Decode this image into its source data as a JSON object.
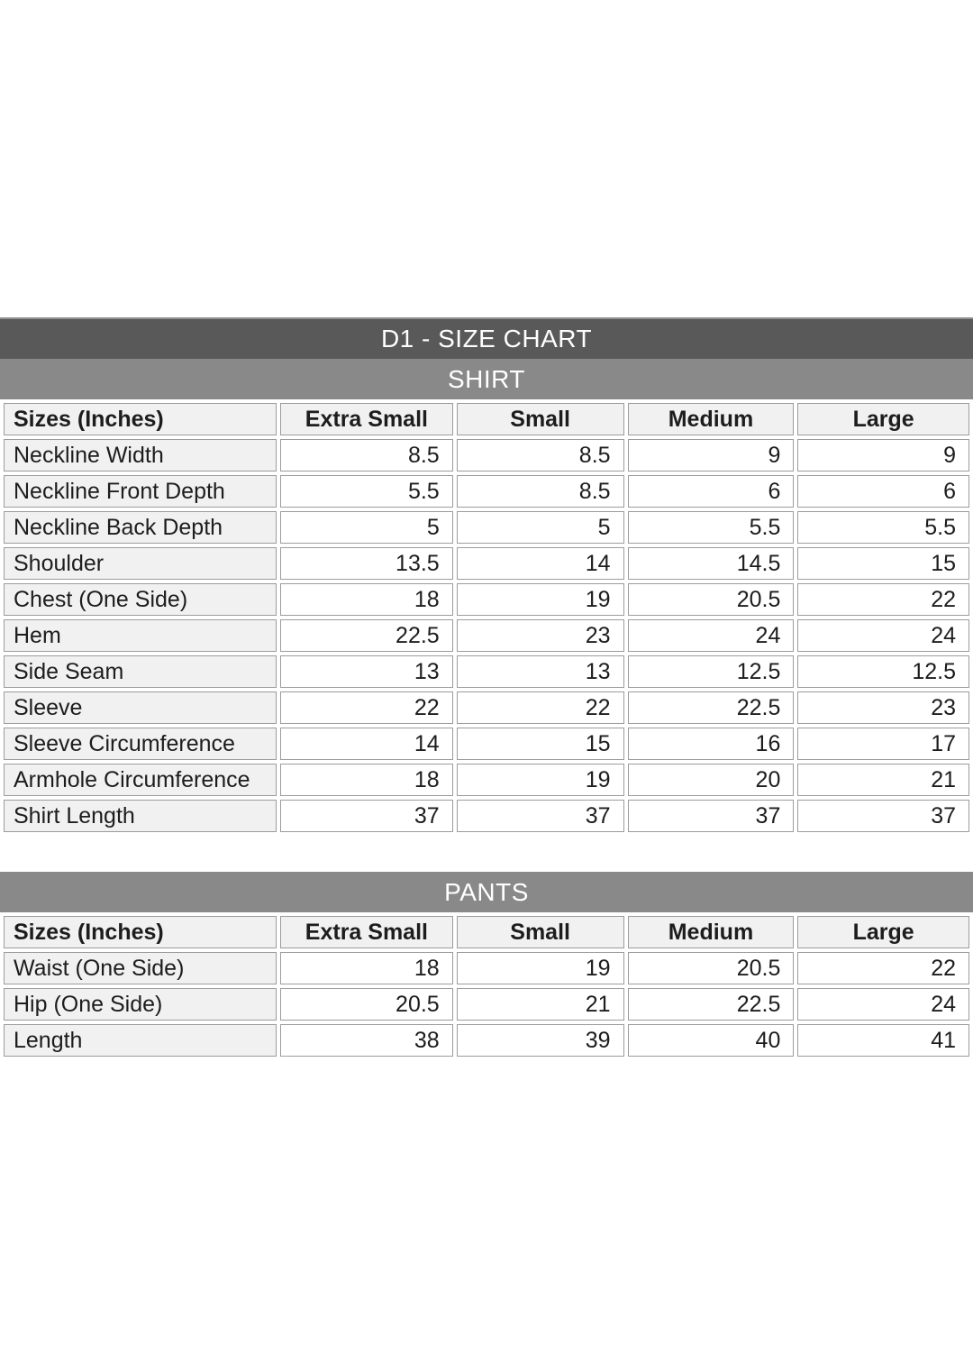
{
  "title": "D1 - SIZE CHART",
  "colors": {
    "page_bg": "#ffffff",
    "title_bar_bg": "#595959",
    "section_bar_bg": "#898989",
    "bar_text": "#ffffff",
    "header_cell_bg": "#f1f1f1",
    "label_cell_bg": "#f1f1f1",
    "value_cell_bg": "#ffffff",
    "cell_border": "#9c9c9c",
    "cell_text": "#1d1d1d",
    "outer_edge": "#909090"
  },
  "chart_data": [
    {
      "type": "table",
      "title": "D1 - SIZE CHART",
      "section": "SHIRT",
      "units": "Inches",
      "columns": [
        "Sizes (Inches)",
        "Extra Small",
        "Small",
        "Medium",
        "Large"
      ],
      "rows": [
        {
          "label": "Neckline Width",
          "values": [
            "8.5",
            "8.5",
            "9",
            "9"
          ]
        },
        {
          "label": "Neckline Front Depth",
          "values": [
            "5.5",
            "8.5",
            "6",
            "6"
          ]
        },
        {
          "label": "Neckline Back Depth",
          "values": [
            "5",
            "5",
            "5.5",
            "5.5"
          ]
        },
        {
          "label": "Shoulder",
          "values": [
            "13.5",
            "14",
            "14.5",
            "15"
          ]
        },
        {
          "label": "Chest (One Side)",
          "values": [
            "18",
            "19",
            "20.5",
            "22"
          ]
        },
        {
          "label": "Hem",
          "values": [
            "22.5",
            "23",
            "24",
            "24"
          ]
        },
        {
          "label": "Side Seam",
          "values": [
            "13",
            "13",
            "12.5",
            "12.5"
          ]
        },
        {
          "label": "Sleeve",
          "values": [
            "22",
            "22",
            "22.5",
            "23"
          ]
        },
        {
          "label": "Sleeve Circumference",
          "values": [
            "14",
            "15",
            "16",
            "17"
          ]
        },
        {
          "label": "Armhole Circumference",
          "values": [
            "18",
            "19",
            "20",
            "21"
          ]
        },
        {
          "label": "Shirt Length",
          "values": [
            "37",
            "37",
            "37",
            "37"
          ]
        }
      ]
    },
    {
      "type": "table",
      "section": "PANTS",
      "units": "Inches",
      "columns": [
        "Sizes (Inches)",
        "Extra Small",
        "Small",
        "Medium",
        "Large"
      ],
      "rows": [
        {
          "label": "Waist (One Side)",
          "values": [
            "18",
            "19",
            "20.5",
            "22"
          ]
        },
        {
          "label": "Hip (One Side)",
          "values": [
            "20.5",
            "21",
            "22.5",
            "24"
          ]
        },
        {
          "label": "Length",
          "values": [
            "38",
            "39",
            "40",
            "41"
          ]
        }
      ]
    }
  ]
}
